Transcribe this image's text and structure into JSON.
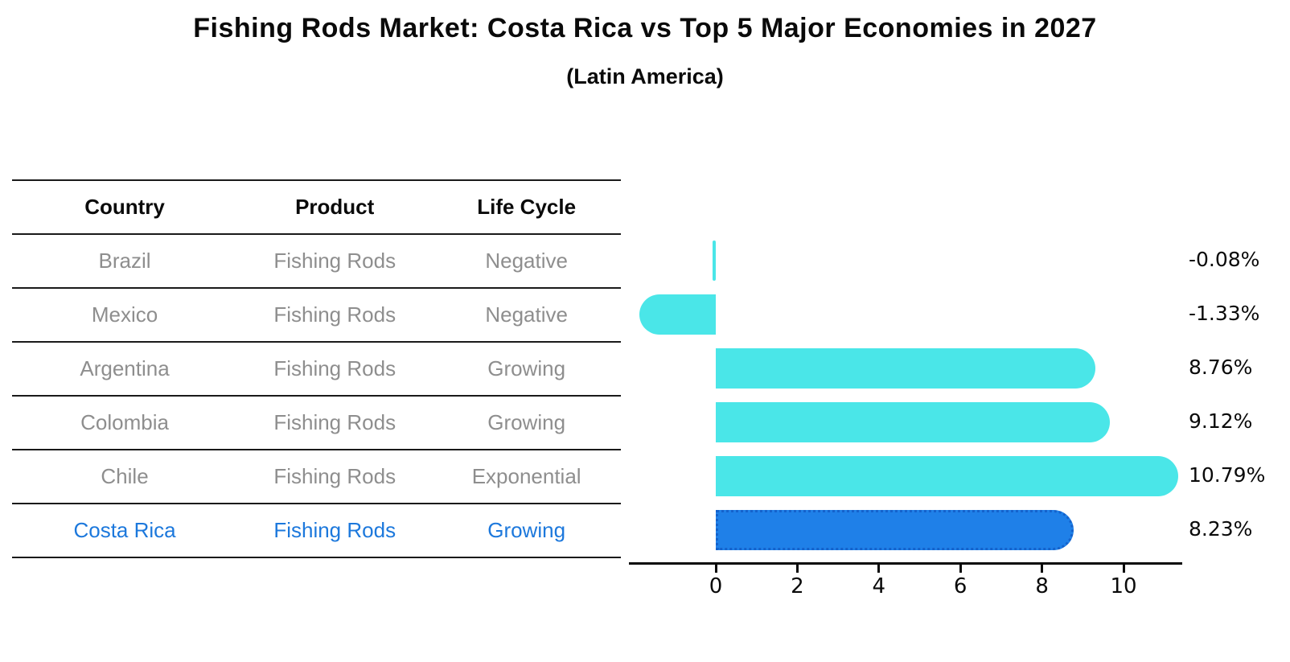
{
  "page": {
    "title": "Fishing Rods Market: Costa Rica vs Top 5 Major Economies in 2027",
    "subtitle": "(Latin America)"
  },
  "table": {
    "columns": [
      "Country",
      "Product",
      "Life Cycle"
    ],
    "rows": [
      {
        "country": "Brazil",
        "product": "Fishing Rods",
        "life_cycle": "Negative",
        "highlight": false
      },
      {
        "country": "Mexico",
        "product": "Fishing Rods",
        "life_cycle": "Negative",
        "highlight": false
      },
      {
        "country": "Argentina",
        "product": "Fishing Rods",
        "life_cycle": "Growing",
        "highlight": false
      },
      {
        "country": "Colombia",
        "product": "Fishing Rods",
        "life_cycle": "Growing",
        "highlight": false
      },
      {
        "country": "Chile",
        "product": "Fishing Rods",
        "life_cycle": "Exponential",
        "highlight": false
      },
      {
        "country": "Costa Rica",
        "product": "Fishing Rods",
        "life_cycle": "Growing",
        "highlight": true
      }
    ],
    "text_color": "#8e8e8e",
    "highlight_text_color": "#1c78dc"
  },
  "chart_data": {
    "type": "bar",
    "orientation": "horizontal",
    "title": "Fishing Rods Market: Costa Rica vs Top 5 Major Economies in 2027",
    "subtitle": "(Latin America)",
    "categories": [
      "Brazil",
      "Mexico",
      "Argentina",
      "Colombia",
      "Chile",
      "Costa Rica"
    ],
    "values": [
      -0.08,
      -1.33,
      8.76,
      9.12,
      10.79,
      8.23
    ],
    "value_labels": [
      "-0.08%",
      "-1.33%",
      "8.76%",
      "9.12%",
      "10.79%",
      "8.23%"
    ],
    "x_ticks": [
      0,
      2,
      4,
      6,
      8,
      10
    ],
    "xlim": [
      -2.1,
      11.4
    ],
    "xlabel": "",
    "ylabel": "",
    "grid": false,
    "legend": false,
    "bar_color": "#4ae6e8",
    "highlight_index": 5,
    "highlight_color": "#1f80e8",
    "highlight_border_color": "#1462cc",
    "axis_color": "#0a0a0a"
  }
}
